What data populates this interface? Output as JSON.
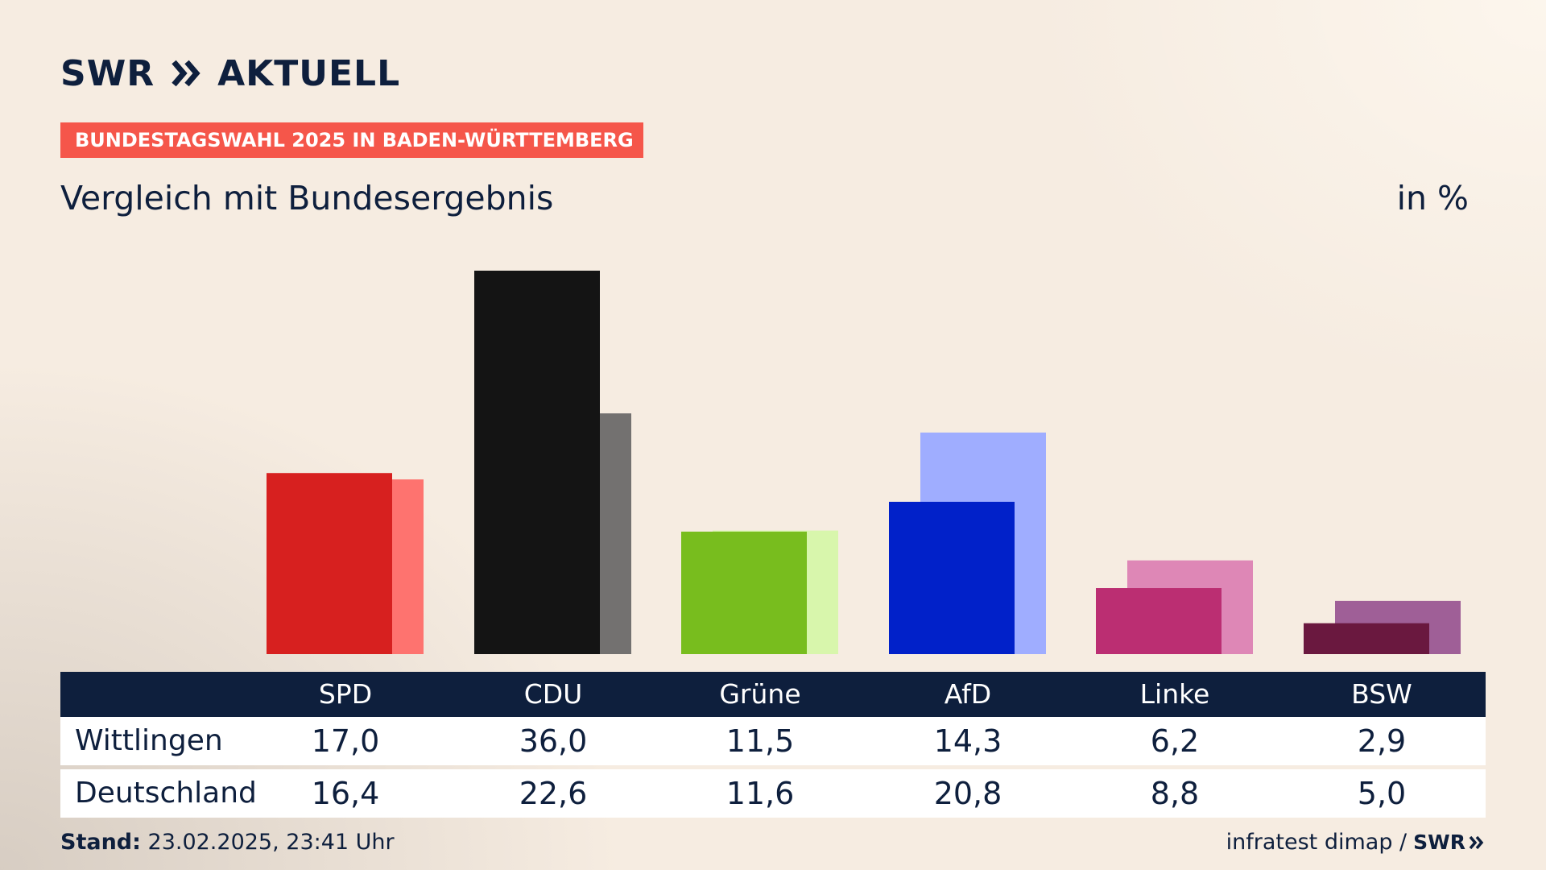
{
  "brand": {
    "swr": "SWR",
    "aktuell": "AKTUELL"
  },
  "banner": "BUNDESTAGSWAHL 2025 IN BADEN-WÜRTTEMBERG",
  "subtitle": "Vergleich mit Bundesergebnis",
  "unit": "in %",
  "chart_data": {
    "type": "bar",
    "categories": [
      "SPD",
      "CDU",
      "Grüne",
      "AfD",
      "Linke",
      "BSW"
    ],
    "series": [
      {
        "name": "Wittlingen",
        "values": [
          17.0,
          36.0,
          11.5,
          14.3,
          6.2,
          2.9
        ]
      },
      {
        "name": "Deutschland",
        "values": [
          16.4,
          22.6,
          11.6,
          20.8,
          8.8,
          5.0
        ]
      }
    ],
    "ylim": [
      0,
      36
    ],
    "grid": false,
    "colors": {
      "primary": [
        "#d7201f",
        "#141414",
        "#78bd1e",
        "#0121c9",
        "#bb2e72",
        "#6a183f"
      ],
      "secondary": [
        "#fe736f",
        "#737170",
        "#d8f6ac",
        "#9fadff",
        "#de87b6",
        "#9f5f97"
      ]
    }
  },
  "table": {
    "header": [
      "SPD",
      "CDU",
      "Grüne",
      "AfD",
      "Linke",
      "BSW"
    ],
    "rows": [
      {
        "label": "Wittlingen",
        "values": [
          "17,0",
          "36,0",
          "11,5",
          "14,3",
          "6,2",
          "2,9"
        ]
      },
      {
        "label": "Deutschland",
        "values": [
          "16,4",
          "22,6",
          "11,6",
          "20,8",
          "8,8",
          "5,0"
        ]
      }
    ]
  },
  "footer": {
    "stand_label": "Stand:",
    "stand_value": "23.02.2025, 23:41 Uhr",
    "source": "infratest dimap /",
    "swr": "SWR"
  },
  "icons": {
    "brand_chevrons": "double-chevron-right-icon"
  }
}
